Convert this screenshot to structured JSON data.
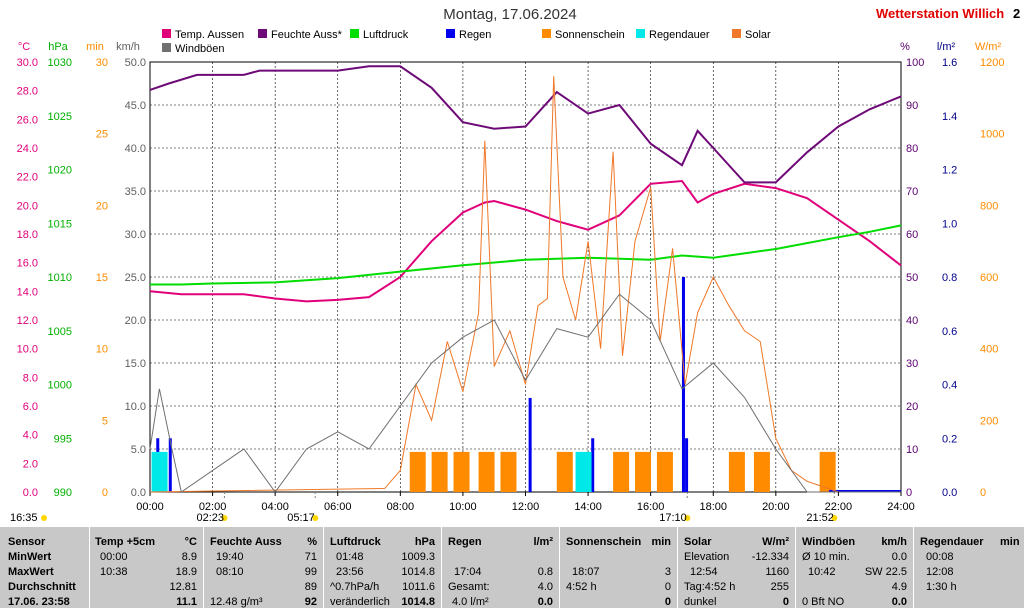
{
  "header": {
    "title": "Montag, 17.06.2024",
    "station": "Wetterstation Willich",
    "station_extra": "2"
  },
  "axis_units": [
    {
      "id": "temp",
      "label": "°C",
      "color": "#e0007a"
    },
    {
      "id": "press",
      "label": "hPa",
      "color": "#00b000"
    },
    {
      "id": "min",
      "label": "min",
      "color": "#ff8c00"
    },
    {
      "id": "kmh",
      "label": "km/h",
      "color": "#606060"
    },
    {
      "id": "pct",
      "label": "%",
      "color": "#5a006e"
    },
    {
      "id": "lm2",
      "label": "l/m²",
      "color": "#00008b"
    },
    {
      "id": "wm2",
      "label": "W/m²",
      "color": "#ff8c00"
    }
  ],
  "chart_data": {
    "type": "line",
    "x_ticks": [
      "00:00",
      "02:00",
      "04:00",
      "06:00",
      "08:00",
      "10:00",
      "12:00",
      "14:00",
      "16:00",
      "18:00",
      "20:00",
      "22:00",
      "24:00"
    ],
    "x_range_hours": [
      0,
      24
    ],
    "axes": {
      "temp": {
        "ticks": [
          "30.0",
          "28.0",
          "26.0",
          "24.0",
          "22.0",
          "20.0",
          "18.0",
          "16.0",
          "14.0",
          "12.0",
          "10.0",
          "8.0",
          "6.0",
          "4.0",
          "2.0",
          "0.0"
        ],
        "range": [
          0,
          30
        ]
      },
      "press": {
        "ticks": [
          "1030",
          "1025",
          "1020",
          "1015",
          "1010",
          "1005",
          "1000",
          "995",
          "990"
        ],
        "range": [
          990,
          1030
        ]
      },
      "min": {
        "ticks": [
          "30",
          "25",
          "20",
          "15",
          "10",
          "5",
          "0"
        ],
        "range": [
          0,
          30
        ]
      },
      "kmh": {
        "ticks": [
          "50.0",
          "45.0",
          "40.0",
          "35.0",
          "30.0",
          "25.0",
          "20.0",
          "15.0",
          "10.0",
          "5.0",
          "0.0"
        ],
        "range": [
          0,
          50
        ]
      },
      "pct": {
        "ticks": [
          "100",
          "90",
          "80",
          "70",
          "60",
          "50",
          "40",
          "30",
          "20",
          "10",
          "0"
        ],
        "range": [
          0,
          100
        ]
      },
      "lm2": {
        "ticks": [
          "1.6",
          "1.4",
          "1.2",
          "1.0",
          "0.8",
          "0.6",
          "0.4",
          "0.2",
          "0.0"
        ],
        "range": [
          0,
          1.6
        ]
      },
      "wm2": {
        "ticks": [
          "1200",
          "1000",
          "800",
          "600",
          "400",
          "200",
          "0"
        ],
        "range": [
          0,
          1200
        ]
      }
    },
    "legend": [
      {
        "name": "Temp. Aussen",
        "color": "#e0007a"
      },
      {
        "name": "Feuchte Auss*",
        "color": "#6e0a78"
      },
      {
        "name": "Luftdruck",
        "color": "#00dd00"
      },
      {
        "name": "Regen",
        "color": "#0000ee"
      },
      {
        "name": "Sonnenschein",
        "color": "#ff8c00"
      },
      {
        "name": "Regendauer",
        "color": "#00e8e8"
      },
      {
        "name": "Solar",
        "color": "#f07828"
      },
      {
        "name": "Windböen",
        "color": "#707070"
      }
    ],
    "series": [
      {
        "name": "Temp. Aussen",
        "axis": "temp",
        "color": "#e0007a",
        "points": [
          [
            0,
            14
          ],
          [
            1,
            13.8
          ],
          [
            2,
            13.8
          ],
          [
            3,
            13.8
          ],
          [
            4,
            13.5
          ],
          [
            5,
            13.3
          ],
          [
            6,
            13.4
          ],
          [
            7,
            13.6
          ],
          [
            8,
            15
          ],
          [
            9,
            17.5
          ],
          [
            10,
            19.5
          ],
          [
            10.7,
            20.2
          ],
          [
            11,
            20.3
          ],
          [
            12,
            19.7
          ],
          [
            13,
            18.9
          ],
          [
            13.5,
            18.6
          ],
          [
            14,
            18.3
          ],
          [
            15,
            19.3
          ],
          [
            16,
            21.5
          ],
          [
            17,
            21.7
          ],
          [
            17.5,
            20.2
          ],
          [
            18,
            20.8
          ],
          [
            19,
            21.5
          ],
          [
            20,
            21.2
          ],
          [
            21,
            20.5
          ],
          [
            22,
            19
          ],
          [
            23,
            17.5
          ],
          [
            24,
            15.8
          ]
        ]
      },
      {
        "name": "Feuchte Auss*",
        "axis": "pct",
        "color": "#6e0a78",
        "points": [
          [
            0,
            93.5
          ],
          [
            0.6,
            95
          ],
          [
            1.5,
            97
          ],
          [
            3,
            97
          ],
          [
            3.5,
            98
          ],
          [
            6,
            98
          ],
          [
            7,
            99
          ],
          [
            8,
            99
          ],
          [
            9,
            94
          ],
          [
            10,
            86
          ],
          [
            11,
            84.5
          ],
          [
            12,
            85
          ],
          [
            13,
            93
          ],
          [
            14,
            88
          ],
          [
            15,
            90
          ],
          [
            16,
            81
          ],
          [
            17,
            76
          ],
          [
            17.5,
            84
          ],
          [
            18,
            80
          ],
          [
            19,
            72
          ],
          [
            20,
            72
          ],
          [
            21,
            79
          ],
          [
            22,
            85
          ],
          [
            23,
            89
          ],
          [
            24,
            92
          ]
        ]
      },
      {
        "name": "Luftdruck",
        "axis": "press",
        "color": "#00dd00",
        "points": [
          [
            0,
            1009.3
          ],
          [
            1,
            1009.3
          ],
          [
            2,
            1009.4
          ],
          [
            4,
            1009.5
          ],
          [
            6,
            1009.9
          ],
          [
            8,
            1010.5
          ],
          [
            10,
            1011.1
          ],
          [
            12,
            1011.6
          ],
          [
            14,
            1011.8
          ],
          [
            16,
            1011.6
          ],
          [
            17,
            1012
          ],
          [
            18,
            1011.8
          ],
          [
            20,
            1012.6
          ],
          [
            22,
            1013.7
          ],
          [
            23,
            1014.2
          ],
          [
            24,
            1014.8
          ]
        ]
      },
      {
        "name": "Regen",
        "axis": "lm2",
        "color": "#0000ee",
        "bars": [
          [
            0.2,
            0.2
          ],
          [
            0.6,
            0.2
          ],
          [
            12.1,
            0.35
          ],
          [
            14.1,
            0.2
          ],
          [
            17.0,
            0.8
          ],
          [
            17.1,
            0.2
          ],
          [
            22,
            0
          ]
        ]
      },
      {
        "name": "Sonnenschein",
        "axis": "min",
        "color": "#ff8c00",
        "bars": [
          [
            8.3,
            2.8
          ],
          [
            9.0,
            2.8
          ],
          [
            9.7,
            2.8
          ],
          [
            10.5,
            2.8
          ],
          [
            11.2,
            2.8
          ],
          [
            13.0,
            2.8
          ],
          [
            14.8,
            2.8
          ],
          [
            15.5,
            2.8
          ],
          [
            16.2,
            2.8
          ],
          [
            18.5,
            2.8
          ],
          [
            19.3,
            2.8
          ],
          [
            21.4,
            2.8
          ]
        ]
      },
      {
        "name": "Regendauer",
        "axis": "min",
        "color": "#00e8e8",
        "bars": [
          [
            0.05,
            2.8
          ],
          [
            13.6,
            2.8
          ]
        ]
      },
      {
        "name": "Solar",
        "axis": "wm2",
        "color": "#f07828",
        "points": [
          [
            0,
            0
          ],
          [
            7.5,
            10
          ],
          [
            8,
            60
          ],
          [
            8.5,
            300
          ],
          [
            9,
            200
          ],
          [
            9.5,
            420
          ],
          [
            10,
            280
          ],
          [
            10.5,
            500
          ],
          [
            10.7,
            980
          ],
          [
            11,
            350
          ],
          [
            11.5,
            450
          ],
          [
            12,
            300
          ],
          [
            12.4,
            520
          ],
          [
            12.7,
            540
          ],
          [
            12.9,
            1160
          ],
          [
            13.2,
            600
          ],
          [
            13.6,
            480
          ],
          [
            14,
            700
          ],
          [
            14.4,
            400
          ],
          [
            14.8,
            950
          ],
          [
            15.1,
            380
          ],
          [
            15.5,
            700
          ],
          [
            16,
            850
          ],
          [
            16.3,
            420
          ],
          [
            16.7,
            680
          ],
          [
            17.1,
            300
          ],
          [
            17.5,
            500
          ],
          [
            18,
            600
          ],
          [
            18.5,
            520
          ],
          [
            19,
            450
          ],
          [
            19.5,
            420
          ],
          [
            20,
            150
          ],
          [
            20.5,
            60
          ],
          [
            21,
            30
          ],
          [
            21.5,
            15
          ],
          [
            22,
            0
          ],
          [
            24,
            0
          ]
        ]
      },
      {
        "name": "Windböen",
        "axis": "kmh",
        "color": "#707070",
        "points": [
          [
            0,
            5
          ],
          [
            0.3,
            12
          ],
          [
            0.7,
            5
          ],
          [
            1,
            0
          ],
          [
            3,
            5
          ],
          [
            4,
            0
          ],
          [
            5,
            5
          ],
          [
            6,
            7
          ],
          [
            7,
            5
          ],
          [
            8,
            10
          ],
          [
            9,
            15
          ],
          [
            10,
            18
          ],
          [
            11,
            20
          ],
          [
            12,
            13
          ],
          [
            13,
            19
          ],
          [
            14,
            18
          ],
          [
            15,
            23
          ],
          [
            16,
            20
          ],
          [
            17,
            12
          ],
          [
            18,
            15
          ],
          [
            19,
            11
          ],
          [
            20,
            5
          ],
          [
            21,
            0
          ],
          [
            24,
            0
          ]
        ]
      }
    ]
  },
  "time_markers": {
    "left": "16:35",
    "m1": "02:23",
    "m2": "05:17",
    "m3": "17:10",
    "m4": "21:52"
  },
  "stats": {
    "row_labels": [
      "Sensor",
      "MinWert",
      "MaxWert",
      "Durchschnitt",
      "17.06. 23:58"
    ],
    "temp": {
      "head": "Temp +5cm",
      "unit": "°C",
      "min_t": "00:00",
      "min_v": "8.9",
      "max_t": "10:38",
      "max_v": "18.9",
      "avg": "12.81",
      "cur": "11.1"
    },
    "hum": {
      "head": "Feuchte Auss",
      "unit": "%",
      "min_t": "19:40",
      "min_v": "71",
      "max_t": "08:10",
      "max_v": "99",
      "avg": "89",
      "cur_l": "12.48 g/m³",
      "cur": "92"
    },
    "press": {
      "head": "Luftdruck",
      "unit": "hPa",
      "min_t": "01:48",
      "min_v": "1009.3",
      "max_t": "23:56",
      "max_v": "1014.8",
      "avg_l": "^0.7hPa/h",
      "avg": "1011.6",
      "cur_l": "veränderlich",
      "cur": "1014.8"
    },
    "rain": {
      "head": "Regen",
      "unit": "l/m²",
      "r3_t": "17:04",
      "r3_v": "0.8",
      "r4_l": "Gesamt:",
      "r4_v": "4.0",
      "cur_l": "4.0 l/m²",
      "cur": "0.0"
    },
    "sun": {
      "head": "Sonnenschein",
      "unit": "min",
      "r3_t": "18:07",
      "r3_v": "3",
      "r4_l": "4:52 h",
      "r4_v": "0",
      "cur": "0"
    },
    "solar": {
      "head": "Solar",
      "unit": "W/m²",
      "r2_l": "Elevation",
      "r2_v": "-12.334",
      "r3_t": "12:54",
      "r3_v": "1160",
      "r4_l": "Tag:4:52 h",
      "r4_v": "255",
      "cur_l": "dunkel",
      "cur": "0"
    },
    "wind": {
      "head": "Windböen",
      "unit": "km/h",
      "r2_l": "Ø 10 min.",
      "r2_v": "0.0",
      "r3_t": "10:42",
      "r3_m": "SW 22.5",
      "r4_v": "4.9",
      "cur_l": "0 Bft NO",
      "cur": "0.0"
    },
    "raindur": {
      "head": "Regendauer",
      "unit": "min",
      "r2_t": "00:08",
      "r3_t": "12:08",
      "r4_t": "1:30 h"
    }
  }
}
